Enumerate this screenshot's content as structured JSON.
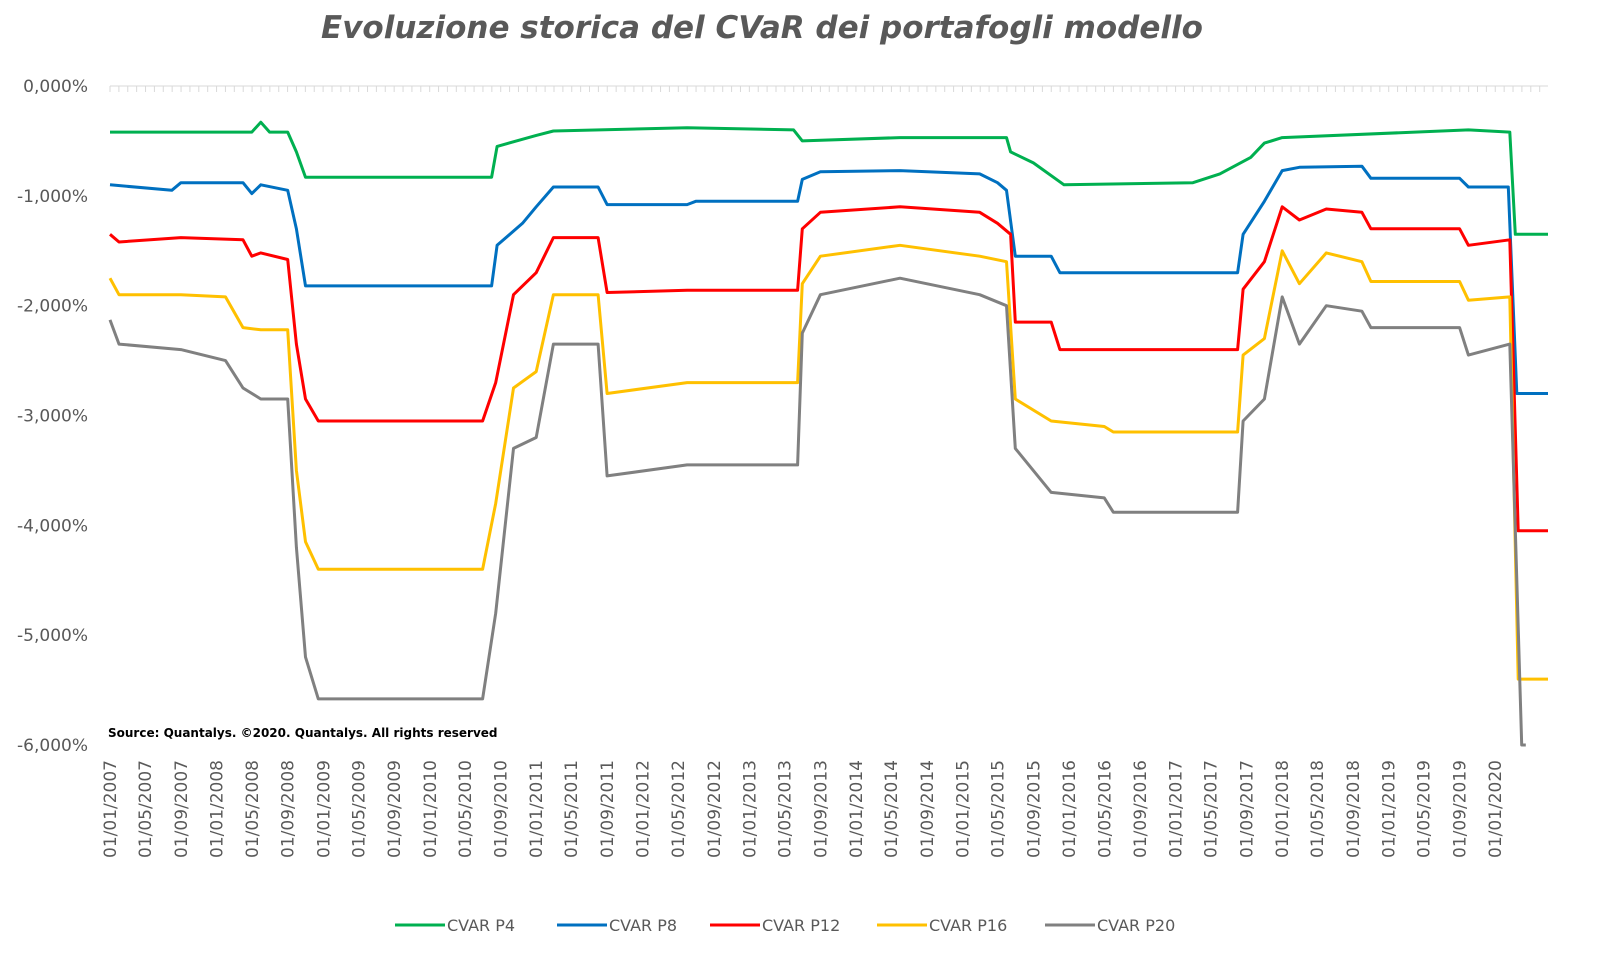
{
  "chart_data": {
    "type": "line",
    "title": "Evoluzione storica del CVaR dei portafogli modello",
    "source": "Source: Quantalys. ©2020. Quantalys. All rights reserved",
    "xlabel": "",
    "ylabel": "",
    "ylim": [
      -6,
      0
    ],
    "xlim": [
      "2007-01-01",
      "2020-06-30"
    ],
    "y_ticks": [
      "0,000%",
      "-1,000%",
      "-2,000%",
      "-3,000%",
      "-4,000%",
      "-5,000%",
      "-6,000%"
    ],
    "x_ticks": [
      "01/01/2007",
      "01/05/2007",
      "01/09/2007",
      "01/01/2008",
      "01/05/2008",
      "01/09/2008",
      "01/01/2009",
      "01/05/2009",
      "01/09/2009",
      "01/01/2010",
      "01/05/2010",
      "01/09/2010",
      "01/01/2011",
      "01/05/2011",
      "01/09/2011",
      "01/01/2012",
      "01/05/2012",
      "01/09/2012",
      "01/01/2013",
      "01/05/2013",
      "01/09/2013",
      "01/01/2014",
      "01/05/2014",
      "01/09/2014",
      "01/01/2015",
      "01/05/2015",
      "01/09/2015",
      "01/01/2016",
      "01/05/2016",
      "01/09/2016",
      "01/01/2017",
      "01/05/2017",
      "01/09/2017",
      "01/01/2018",
      "01/05/2018",
      "01/09/2018",
      "01/01/2019",
      "01/05/2019",
      "01/09/2019",
      "01/01/2020"
    ],
    "legend_position": "bottom",
    "grid": false,
    "series": [
      {
        "name": "CVAR P4",
        "color": "#00b050",
        "points": [
          [
            "2007-01-01",
            -0.42
          ],
          [
            "2008-05-01",
            -0.42
          ],
          [
            "2008-06-01",
            -0.33
          ],
          [
            "2008-07-01",
            -0.42
          ],
          [
            "2008-09-01",
            -0.42
          ],
          [
            "2008-10-01",
            -0.6
          ],
          [
            "2008-11-01",
            -0.83
          ],
          [
            "2010-08-01",
            -0.83
          ],
          [
            "2010-08-20",
            -0.55
          ],
          [
            "2011-01-01",
            -0.45
          ],
          [
            "2011-03-01",
            -0.41
          ],
          [
            "2012-06-01",
            -0.38
          ],
          [
            "2013-06-01",
            -0.4
          ],
          [
            "2013-07-01",
            -0.5
          ],
          [
            "2014-06-01",
            -0.47
          ],
          [
            "2015-06-01",
            -0.47
          ],
          [
            "2015-06-15",
            -0.6
          ],
          [
            "2015-09-01",
            -0.7
          ],
          [
            "2015-12-15",
            -0.9
          ],
          [
            "2017-03-01",
            -0.88
          ],
          [
            "2017-06-01",
            -0.8
          ],
          [
            "2017-09-15",
            -0.65
          ],
          [
            "2017-11-01",
            -0.52
          ],
          [
            "2018-01-01",
            -0.47
          ],
          [
            "2019-10-01",
            -0.4
          ],
          [
            "2020-02-20",
            -0.42
          ],
          [
            "2020-03-10",
            -1.35
          ],
          [
            "2020-06-30",
            -1.35
          ]
        ]
      },
      {
        "name": "CVAR P8",
        "color": "#0070c0",
        "points": [
          [
            "2007-01-01",
            -0.9
          ],
          [
            "2007-08-01",
            -0.95
          ],
          [
            "2007-09-01",
            -0.88
          ],
          [
            "2008-04-01",
            -0.88
          ],
          [
            "2008-05-01",
            -0.98
          ],
          [
            "2008-06-01",
            -0.9
          ],
          [
            "2008-09-01",
            -0.95
          ],
          [
            "2008-10-01",
            -1.3
          ],
          [
            "2008-11-01",
            -1.82
          ],
          [
            "2010-08-01",
            -1.82
          ],
          [
            "2010-08-20",
            -1.45
          ],
          [
            "2010-11-15",
            -1.25
          ],
          [
            "2011-01-01",
            -1.1
          ],
          [
            "2011-03-01",
            -0.92
          ],
          [
            "2011-08-01",
            -0.92
          ],
          [
            "2011-09-01",
            -1.08
          ],
          [
            "2012-06-01",
            -1.08
          ],
          [
            "2012-07-01",
            -1.05
          ],
          [
            "2013-06-15",
            -1.05
          ],
          [
            "2013-07-01",
            -0.85
          ],
          [
            "2013-09-01",
            -0.78
          ],
          [
            "2014-06-01",
            -0.77
          ],
          [
            "2015-03-01",
            -0.8
          ],
          [
            "2015-05-01",
            -0.88
          ],
          [
            "2015-06-01",
            -0.95
          ],
          [
            "2015-07-01",
            -1.55
          ],
          [
            "2015-11-01",
            -1.55
          ],
          [
            "2015-12-01",
            -1.7
          ],
          [
            "2017-08-01",
            -1.7
          ],
          [
            "2017-08-20",
            -1.35
          ],
          [
            "2017-11-01",
            -1.05
          ],
          [
            "2018-01-01",
            -0.77
          ],
          [
            "2018-03-01",
            -0.74
          ],
          [
            "2018-10-01",
            -0.73
          ],
          [
            "2018-11-01",
            -0.84
          ],
          [
            "2019-09-01",
            -0.84
          ],
          [
            "2019-10-01",
            -0.92
          ],
          [
            "2020-02-15",
            -0.92
          ],
          [
            "2020-03-15",
            -2.8
          ],
          [
            "2020-06-30",
            -2.8
          ]
        ]
      },
      {
        "name": "CVAR P12",
        "color": "#ff0000",
        "points": [
          [
            "2007-01-01",
            -1.35
          ],
          [
            "2007-02-01",
            -1.42
          ],
          [
            "2007-09-01",
            -1.38
          ],
          [
            "2008-04-01",
            -1.4
          ],
          [
            "2008-05-01",
            -1.55
          ],
          [
            "2008-06-01",
            -1.52
          ],
          [
            "2008-09-01",
            -1.58
          ],
          [
            "2008-10-01",
            -2.35
          ],
          [
            "2008-11-01",
            -2.85
          ],
          [
            "2008-12-15",
            -3.05
          ],
          [
            "2010-07-01",
            -3.05
          ],
          [
            "2010-08-15",
            -2.7
          ],
          [
            "2010-10-15",
            -1.9
          ],
          [
            "2011-01-01",
            -1.7
          ],
          [
            "2011-03-01",
            -1.38
          ],
          [
            "2011-08-01",
            -1.38
          ],
          [
            "2011-09-01",
            -1.88
          ],
          [
            "2012-06-01",
            -1.86
          ],
          [
            "2013-06-15",
            -1.86
          ],
          [
            "2013-07-01",
            -1.3
          ],
          [
            "2013-09-01",
            -1.15
          ],
          [
            "2014-06-01",
            -1.1
          ],
          [
            "2015-03-01",
            -1.15
          ],
          [
            "2015-05-01",
            -1.25
          ],
          [
            "2015-06-15",
            -1.35
          ],
          [
            "2015-07-01",
            -2.15
          ],
          [
            "2015-11-01",
            -2.15
          ],
          [
            "2015-12-01",
            -2.4
          ],
          [
            "2017-08-01",
            -2.4
          ],
          [
            "2017-08-20",
            -1.85
          ],
          [
            "2017-11-01",
            -1.6
          ],
          [
            "2018-01-01",
            -1.1
          ],
          [
            "2018-03-01",
            -1.22
          ],
          [
            "2018-06-01",
            -1.12
          ],
          [
            "2018-10-01",
            -1.15
          ],
          [
            "2018-11-01",
            -1.3
          ],
          [
            "2019-09-01",
            -1.3
          ],
          [
            "2019-10-01",
            -1.45
          ],
          [
            "2020-02-20",
            -1.4
          ],
          [
            "2020-03-20",
            -4.05
          ],
          [
            "2020-06-30",
            -4.05
          ]
        ]
      },
      {
        "name": "CVAR P16",
        "color": "#ffc000",
        "points": [
          [
            "2007-01-01",
            -1.75
          ],
          [
            "2007-02-01",
            -1.9
          ],
          [
            "2007-09-01",
            -1.9
          ],
          [
            "2008-02-01",
            -1.92
          ],
          [
            "2008-04-01",
            -2.2
          ],
          [
            "2008-06-01",
            -2.22
          ],
          [
            "2008-09-01",
            -2.22
          ],
          [
            "2008-10-01",
            -3.5
          ],
          [
            "2008-11-01",
            -4.15
          ],
          [
            "2008-12-15",
            -4.4
          ],
          [
            "2010-07-01",
            -4.4
          ],
          [
            "2010-08-15",
            -3.8
          ],
          [
            "2010-10-15",
            -2.75
          ],
          [
            "2011-01-01",
            -2.6
          ],
          [
            "2011-03-01",
            -1.9
          ],
          [
            "2011-08-01",
            -1.9
          ],
          [
            "2011-09-01",
            -2.8
          ],
          [
            "2012-06-01",
            -2.7
          ],
          [
            "2013-06-15",
            -2.7
          ],
          [
            "2013-07-01",
            -1.8
          ],
          [
            "2013-09-01",
            -1.55
          ],
          [
            "2014-06-01",
            -1.45
          ],
          [
            "2015-03-01",
            -1.55
          ],
          [
            "2015-06-01",
            -1.6
          ],
          [
            "2015-07-01",
            -2.85
          ],
          [
            "2015-11-01",
            -3.05
          ],
          [
            "2016-05-01",
            -3.1
          ],
          [
            "2016-06-01",
            -3.15
          ],
          [
            "2017-08-01",
            -3.15
          ],
          [
            "2017-08-20",
            -2.45
          ],
          [
            "2017-11-01",
            -2.3
          ],
          [
            "2018-01-01",
            -1.5
          ],
          [
            "2018-03-01",
            -1.8
          ],
          [
            "2018-06-01",
            -1.52
          ],
          [
            "2018-10-01",
            -1.6
          ],
          [
            "2018-11-01",
            -1.78
          ],
          [
            "2019-09-01",
            -1.78
          ],
          [
            "2019-10-01",
            -1.95
          ],
          [
            "2020-02-20",
            -1.92
          ],
          [
            "2020-03-20",
            -5.4
          ],
          [
            "2020-06-30",
            -5.4
          ]
        ]
      },
      {
        "name": "CVAR P20",
        "color": "#808080",
        "points": [
          [
            "2007-01-01",
            -2.13
          ],
          [
            "2007-02-01",
            -2.35
          ],
          [
            "2007-09-01",
            -2.4
          ],
          [
            "2008-02-01",
            -2.5
          ],
          [
            "2008-04-01",
            -2.75
          ],
          [
            "2008-06-01",
            -2.85
          ],
          [
            "2008-09-01",
            -2.85
          ],
          [
            "2008-10-01",
            -4.2
          ],
          [
            "2008-11-01",
            -5.2
          ],
          [
            "2008-12-15",
            -5.58
          ],
          [
            "2010-07-01",
            -5.58
          ],
          [
            "2010-08-15",
            -4.8
          ],
          [
            "2010-10-15",
            -3.3
          ],
          [
            "2011-01-01",
            -3.2
          ],
          [
            "2011-03-01",
            -2.35
          ],
          [
            "2011-08-01",
            -2.35
          ],
          [
            "2011-09-01",
            -3.55
          ],
          [
            "2012-06-01",
            -3.45
          ],
          [
            "2013-06-15",
            -3.45
          ],
          [
            "2013-07-01",
            -2.25
          ],
          [
            "2013-09-01",
            -1.9
          ],
          [
            "2014-06-01",
            -1.75
          ],
          [
            "2015-03-01",
            -1.9
          ],
          [
            "2015-06-01",
            -2.0
          ],
          [
            "2015-07-01",
            -3.3
          ],
          [
            "2015-11-01",
            -3.7
          ],
          [
            "2016-05-01",
            -3.75
          ],
          [
            "2016-06-01",
            -3.88
          ],
          [
            "2017-08-01",
            -3.88
          ],
          [
            "2017-08-20",
            -3.05
          ],
          [
            "2017-11-01",
            -2.85
          ],
          [
            "2018-01-01",
            -1.92
          ],
          [
            "2018-03-01",
            -2.35
          ],
          [
            "2018-06-01",
            -2.0
          ],
          [
            "2018-10-01",
            -2.05
          ],
          [
            "2018-11-01",
            -2.2
          ],
          [
            "2019-09-01",
            -2.2
          ],
          [
            "2019-10-01",
            -2.45
          ],
          [
            "2020-02-20",
            -2.35
          ],
          [
            "2020-04-01",
            -6.0
          ],
          [
            "2020-04-15",
            -6.0
          ]
        ]
      }
    ]
  }
}
